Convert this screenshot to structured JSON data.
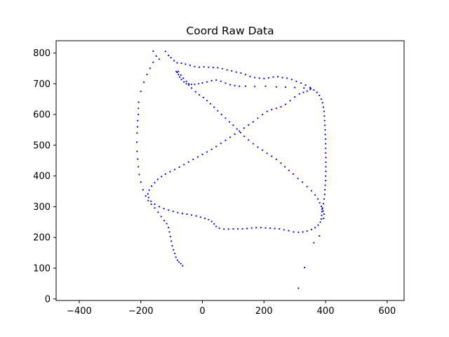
{
  "chart_data": {
    "type": "scatter",
    "title": "Coord Raw Data",
    "xlabel": "",
    "ylabel": "",
    "xlim": [
      -475,
      655
    ],
    "ylim": [
      -5,
      840
    ],
    "xticks": [
      -400,
      -200,
      0,
      200,
      400,
      600
    ],
    "yticks": [
      0,
      100,
      200,
      300,
      400,
      500,
      600,
      700,
      800
    ],
    "grid": false,
    "legend": "none",
    "marker_color": "#0000ff",
    "series": [
      {
        "points": [
          [
            -120,
            805
          ],
          [
            -110,
            792
          ],
          [
            -102,
            785
          ],
          [
            -92,
            775
          ],
          [
            -82,
            768
          ],
          [
            -68,
            767
          ],
          [
            -55,
            764
          ],
          [
            -40,
            760
          ],
          [
            -25,
            756
          ],
          [
            -10,
            754
          ],
          [
            5,
            755
          ],
          [
            20,
            754
          ],
          [
            35,
            753
          ],
          [
            50,
            752
          ],
          [
            65,
            749
          ],
          [
            80,
            745
          ],
          [
            95,
            742
          ],
          [
            110,
            738
          ],
          [
            125,
            735
          ],
          [
            140,
            730
          ],
          [
            155,
            724
          ],
          [
            170,
            720
          ],
          [
            185,
            718
          ],
          [
            200,
            717
          ],
          [
            215,
            719
          ],
          [
            230,
            722
          ],
          [
            245,
            723
          ],
          [
            260,
            720
          ],
          [
            275,
            718
          ],
          [
            290,
            714
          ],
          [
            305,
            708
          ],
          [
            320,
            702
          ],
          [
            335,
            696
          ],
          [
            350,
            688
          ],
          [
            362,
            680
          ],
          [
            372,
            672
          ],
          [
            380,
            662
          ],
          [
            386,
            650
          ],
          [
            390,
            638
          ],
          [
            393,
            624
          ],
          [
            395,
            610
          ],
          [
            396,
            595
          ],
          [
            397,
            580
          ],
          [
            398,
            565
          ],
          [
            399,
            550
          ],
          [
            399,
            535
          ],
          [
            400,
            520
          ],
          [
            400,
            505
          ],
          [
            400,
            490
          ],
          [
            400,
            475
          ],
          [
            401,
            460
          ],
          [
            401,
            445
          ],
          [
            401,
            430
          ],
          [
            401,
            415
          ],
          [
            400,
            400
          ],
          [
            400,
            385
          ],
          [
            399,
            370
          ],
          [
            398,
            355
          ],
          [
            397,
            340
          ],
          [
            395,
            325
          ],
          [
            393,
            310
          ],
          [
            390,
            296
          ],
          [
            388,
            284
          ],
          [
            387,
            272
          ],
          [
            386,
            260
          ],
          [
            383,
            250
          ],
          [
            376,
            240
          ],
          [
            366,
            232
          ],
          [
            354,
            226
          ],
          [
            340,
            221
          ],
          [
            326,
            218
          ],
          [
            312,
            217
          ],
          [
            296,
            218
          ],
          [
            280,
            222
          ],
          [
            265,
            225
          ],
          [
            250,
            228
          ],
          [
            235,
            229
          ],
          [
            220,
            230
          ],
          [
            205,
            231
          ],
          [
            190,
            232
          ],
          [
            175,
            232
          ],
          [
            160,
            231
          ],
          [
            145,
            229
          ],
          [
            130,
            228
          ],
          [
            115,
            228
          ],
          [
            100,
            228
          ],
          [
            85,
            227
          ],
          [
            70,
            227
          ],
          [
            55,
            230
          ],
          [
            45,
            236
          ],
          [
            38,
            244
          ],
          [
            30,
            252
          ],
          [
            20,
            258
          ],
          [
            8,
            262
          ],
          [
            -6,
            266
          ],
          [
            -20,
            270
          ],
          [
            -35,
            273
          ],
          [
            -50,
            276
          ],
          [
            -65,
            278
          ],
          [
            -80,
            281
          ],
          [
            -95,
            285
          ],
          [
            -110,
            289
          ],
          [
            -125,
            294
          ],
          [
            -140,
            300
          ],
          [
            -155,
            308
          ],
          [
            -167,
            318
          ],
          [
            -175,
            330
          ],
          [
            -177,
            342
          ],
          [
            -173,
            354
          ],
          [
            -165,
            367
          ],
          [
            -155,
            378
          ],
          [
            -145,
            389
          ],
          [
            -133,
            398
          ],
          [
            -120,
            406
          ],
          [
            -105,
            414
          ],
          [
            -90,
            421
          ],
          [
            -75,
            429
          ],
          [
            -60,
            437
          ],
          [
            -45,
            445
          ],
          [
            -30,
            454
          ],
          [
            -15,
            462
          ],
          [
            0,
            470
          ],
          [
            15,
            478
          ],
          [
            30,
            487
          ],
          [
            45,
            496
          ],
          [
            60,
            506
          ],
          [
            75,
            516
          ],
          [
            90,
            526
          ],
          [
            105,
            536
          ],
          [
            120,
            546
          ],
          [
            135,
            556
          ],
          [
            150,
            566
          ],
          [
            165,
            576
          ],
          [
            180,
            588
          ],
          [
            195,
            600
          ],
          [
            210,
            610
          ],
          [
            225,
            616
          ],
          [
            240,
            620
          ],
          [
            255,
            625
          ],
          [
            270,
            633
          ],
          [
            285,
            645
          ],
          [
            300,
            657
          ],
          [
            315,
            667
          ],
          [
            328,
            672
          ],
          [
            340,
            676
          ],
          [
            352,
            684
          ],
          [
            -85,
            740
          ],
          [
            -82,
            737
          ],
          [
            -78,
            730
          ],
          [
            -74,
            722
          ],
          [
            -68,
            714
          ],
          [
            -60,
            706
          ],
          [
            -52,
            700
          ],
          [
            -44,
            700
          ],
          [
            -35,
            698
          ],
          [
            -25,
            698
          ],
          [
            -12,
            700
          ],
          [
            0,
            703
          ],
          [
            15,
            706
          ],
          [
            30,
            710
          ],
          [
            45,
            712
          ],
          [
            60,
            708
          ],
          [
            75,
            702
          ],
          [
            90,
            697
          ],
          [
            105,
            694
          ],
          [
            120,
            692
          ],
          [
            140,
            692
          ],
          [
            170,
            691
          ],
          [
            205,
            692
          ],
          [
            240,
            690
          ],
          [
            270,
            689
          ],
          [
            300,
            688
          ],
          [
            330,
            686
          ],
          [
            350,
            682
          ],
          [
            -78,
            740
          ],
          [
            -70,
            728
          ],
          [
            -62,
            718
          ],
          [
            -52,
            708
          ],
          [
            -44,
            696
          ],
          [
            -35,
            686
          ],
          [
            -22,
            674
          ],
          [
            -10,
            664
          ],
          [
            3,
            655
          ],
          [
            15,
            645
          ],
          [
            26,
            635
          ],
          [
            38,
            624
          ],
          [
            50,
            612
          ],
          [
            62,
            600
          ],
          [
            75,
            588
          ],
          [
            88,
            576
          ],
          [
            100,
            565
          ],
          [
            112,
            553
          ],
          [
            124,
            541
          ],
          [
            136,
            529
          ],
          [
            150,
            517
          ],
          [
            165,
            505
          ],
          [
            180,
            494
          ],
          [
            195,
            484
          ],
          [
            210,
            474
          ],
          [
            225,
            464
          ],
          [
            240,
            454
          ],
          [
            255,
            442
          ],
          [
            268,
            430
          ],
          [
            281,
            418
          ],
          [
            295,
            406
          ],
          [
            310,
            392
          ],
          [
            325,
            380
          ],
          [
            340,
            366
          ],
          [
            354,
            352
          ],
          [
            366,
            338
          ],
          [
            375,
            325
          ],
          [
            381,
            313
          ],
          [
            386,
            301
          ],
          [
            389,
            292
          ],
          [
            392,
            286
          ],
          [
            395,
            276
          ],
          [
            394,
            262
          ],
          [
            380,
            205
          ],
          [
            362,
            183
          ],
          [
            332,
            102
          ],
          [
            312,
            35
          ],
          [
            -160,
            806
          ],
          [
            -150,
            790
          ],
          [
            -140,
            780
          ],
          [
            -160,
            770
          ],
          [
            -170,
            750
          ],
          [
            -180,
            730
          ],
          [
            -190,
            705
          ],
          [
            -200,
            675
          ],
          [
            -207,
            640
          ],
          [
            -208,
            620
          ],
          [
            -208,
            600
          ],
          [
            -210,
            580
          ],
          [
            -211,
            560
          ],
          [
            -212,
            540
          ],
          [
            -213,
            510
          ],
          [
            -212,
            480
          ],
          [
            -210,
            455
          ],
          [
            -208,
            430
          ],
          [
            -205,
            405
          ],
          [
            -200,
            380
          ],
          [
            -193,
            355
          ],
          [
            -184,
            335
          ],
          [
            -176,
            320
          ],
          [
            -166,
            308
          ],
          [
            -155,
            296
          ],
          [
            -144,
            282
          ],
          [
            -134,
            268
          ],
          [
            -124,
            255
          ],
          [
            -116,
            245
          ],
          [
            -110,
            232
          ],
          [
            -107,
            218
          ],
          [
            -104,
            203
          ],
          [
            -101,
            188
          ],
          [
            -98,
            173
          ],
          [
            -94,
            160
          ],
          [
            -90,
            148
          ],
          [
            -86,
            136
          ],
          [
            -81,
            126
          ],
          [
            -76,
            120
          ],
          [
            -70,
            115
          ],
          [
            -64,
            108
          ]
        ]
      }
    ]
  }
}
